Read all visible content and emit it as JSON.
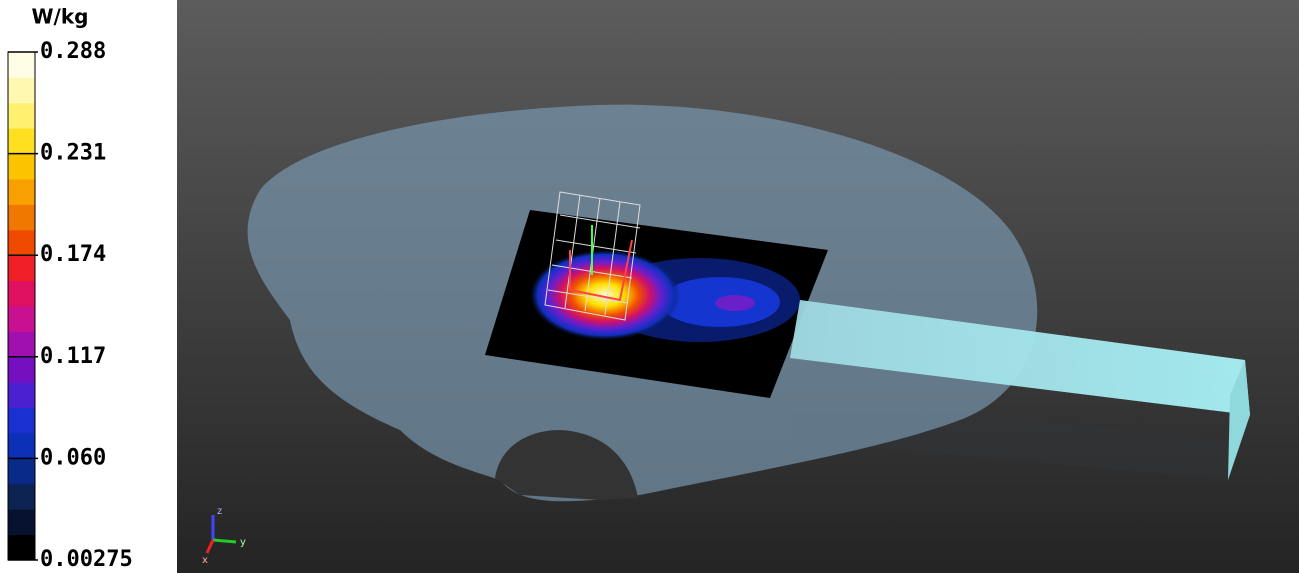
{
  "legend": {
    "unit": "W/kg",
    "ticks": [
      "0.288",
      "0.231",
      "0.174",
      "0.117",
      "0.060",
      "0.00275"
    ]
  },
  "axes_triad": {
    "z": "z",
    "y": "y",
    "x": "x"
  }
}
